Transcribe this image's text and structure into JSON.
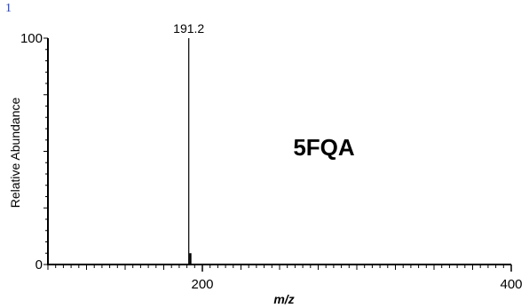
{
  "corner_mark": "1",
  "chart_data": {
    "type": "bar",
    "title": "",
    "annotation": "5FQA",
    "xlabel": "m/z",
    "ylabel": "Relative Abundance",
    "xlim": [
      100,
      400
    ],
    "ylim": [
      0,
      100
    ],
    "x_ticks": [
      200,
      400
    ],
    "y_ticks": [
      0,
      100
    ],
    "grid": false,
    "series": [
      {
        "points": [
          {
            "x": 191.2,
            "y": 100,
            "label": "191.2"
          },
          {
            "x": 192.2,
            "y": 5
          }
        ]
      }
    ]
  }
}
